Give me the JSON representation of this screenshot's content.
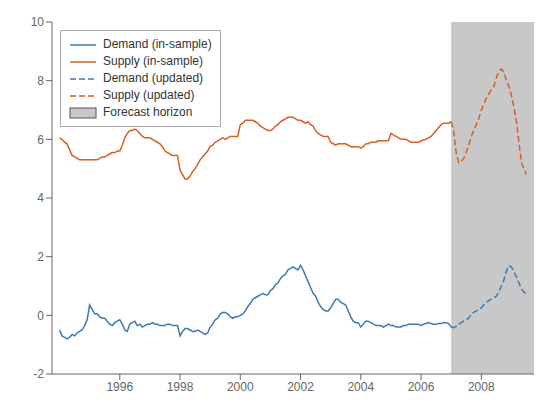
{
  "chart_data": {
    "type": "line",
    "xlim": [
      1993.75,
      2009.75
    ],
    "ylim": [
      -2,
      10
    ],
    "xticks": [
      1996,
      1998,
      2000,
      2002,
      2004,
      2006,
      2008
    ],
    "yticks": [
      -2,
      0,
      2,
      4,
      6,
      8,
      10
    ],
    "grid": false,
    "legend": "upper left",
    "spans": [
      {
        "label": "Forecast horizon",
        "start": 2007.0,
        "end": 2009.75,
        "color": "#c8c8c8"
      }
    ],
    "series": [
      {
        "name": "Demand (in-sample)",
        "color": "#3d7ab5",
        "line_style": "solid",
        "x": [
          1994.0,
          1994.083,
          1994.167,
          1994.25,
          1994.333,
          1994.417,
          1994.5,
          1994.583,
          1994.667,
          1994.75,
          1994.833,
          1994.917,
          1995.0,
          1995.083,
          1995.167,
          1995.25,
          1995.333,
          1995.417,
          1995.5,
          1995.583,
          1995.667,
          1995.75,
          1995.833,
          1995.917,
          1996.0,
          1996.083,
          1996.167,
          1996.25,
          1996.333,
          1996.417,
          1996.5,
          1996.583,
          1996.667,
          1996.75,
          1996.833,
          1996.917,
          1997.0,
          1997.083,
          1997.167,
          1997.25,
          1997.333,
          1997.417,
          1997.5,
          1997.583,
          1997.667,
          1997.75,
          1997.833,
          1997.917,
          1998.0,
          1998.083,
          1998.167,
          1998.25,
          1998.333,
          1998.417,
          1998.5,
          1998.583,
          1998.667,
          1998.75,
          1998.833,
          1998.917,
          1999.0,
          1999.083,
          1999.167,
          1999.25,
          1999.333,
          1999.417,
          1999.5,
          1999.583,
          1999.667,
          1999.75,
          1999.833,
          1999.917,
          2000.0,
          2000.083,
          2000.167,
          2000.25,
          2000.333,
          2000.417,
          2000.5,
          2000.583,
          2000.667,
          2000.75,
          2000.833,
          2000.917,
          2001.0,
          2001.083,
          2001.167,
          2001.25,
          2001.333,
          2001.417,
          2001.5,
          2001.583,
          2001.667,
          2001.75,
          2001.833,
          2001.917,
          2002.0,
          2002.083,
          2002.167,
          2002.25,
          2002.333,
          2002.417,
          2002.5,
          2002.583,
          2002.667,
          2002.75,
          2002.833,
          2002.917,
          2003.0,
          2003.083,
          2003.167,
          2003.25,
          2003.333,
          2003.417,
          2003.5,
          2003.583,
          2003.667,
          2003.75,
          2003.833,
          2003.917,
          2004.0,
          2004.083,
          2004.167,
          2004.25,
          2004.333,
          2004.417,
          2004.5,
          2004.583,
          2004.667,
          2004.75,
          2004.833,
          2004.917,
          2005.0,
          2005.083,
          2005.167,
          2005.25,
          2005.333,
          2005.417,
          2005.5,
          2005.583,
          2005.667,
          2005.75,
          2005.833,
          2005.917,
          2006.0,
          2006.083,
          2006.167,
          2006.25,
          2006.333,
          2006.417,
          2006.5,
          2006.583,
          2006.667,
          2006.75,
          2006.833,
          2006.917,
          2007.0
        ],
        "values": [
          -0.5,
          -0.7,
          -0.75,
          -0.8,
          -0.75,
          -0.65,
          -0.7,
          -0.6,
          -0.55,
          -0.5,
          -0.35,
          -0.15,
          0.35,
          0.2,
          0.05,
          0.05,
          -0.05,
          -0.1,
          -0.1,
          -0.2,
          -0.3,
          -0.35,
          -0.25,
          -0.2,
          -0.15,
          -0.3,
          -0.5,
          -0.55,
          -0.3,
          -0.25,
          -0.2,
          -0.35,
          -0.3,
          -0.4,
          -0.35,
          -0.3,
          -0.3,
          -0.25,
          -0.3,
          -0.3,
          -0.35,
          -0.35,
          -0.35,
          -0.3,
          -0.3,
          -0.35,
          -0.35,
          -0.35,
          -0.7,
          -0.55,
          -0.45,
          -0.45,
          -0.5,
          -0.55,
          -0.55,
          -0.5,
          -0.55,
          -0.6,
          -0.65,
          -0.6,
          -0.4,
          -0.3,
          -0.15,
          -0.1,
          0.05,
          0.1,
          0.1,
          0.05,
          -0.05,
          -0.1,
          -0.05,
          -0.05,
          0.0,
          0.05,
          0.15,
          0.3,
          0.4,
          0.55,
          0.6,
          0.65,
          0.7,
          0.75,
          0.7,
          0.7,
          0.85,
          0.9,
          1.05,
          1.1,
          1.25,
          1.35,
          1.4,
          1.55,
          1.6,
          1.65,
          1.6,
          1.55,
          1.7,
          1.55,
          1.35,
          1.15,
          0.95,
          0.75,
          0.65,
          0.45,
          0.3,
          0.2,
          0.15,
          0.15,
          0.25,
          0.4,
          0.55,
          0.55,
          0.45,
          0.4,
          0.35,
          0.15,
          -0.05,
          -0.2,
          -0.25,
          -0.25,
          -0.4,
          -0.3,
          -0.2,
          -0.2,
          -0.25,
          -0.3,
          -0.35,
          -0.35,
          -0.35,
          -0.4,
          -0.35,
          -0.3,
          -0.35,
          -0.35,
          -0.4,
          -0.4,
          -0.4,
          -0.35,
          -0.35,
          -0.3,
          -0.3,
          -0.3,
          -0.3,
          -0.3,
          -0.35,
          -0.3,
          -0.28,
          -0.25,
          -0.28,
          -0.3,
          -0.3,
          -0.28,
          -0.28,
          -0.25,
          -0.25,
          -0.28,
          -0.4
        ]
      },
      {
        "name": "Supply (in-sample)",
        "color": "#d95f20",
        "line_style": "solid",
        "x": [
          1994.0,
          1994.083,
          1994.167,
          1994.25,
          1994.333,
          1994.417,
          1994.5,
          1994.583,
          1994.667,
          1994.75,
          1994.833,
          1994.917,
          1995.0,
          1995.083,
          1995.167,
          1995.25,
          1995.333,
          1995.417,
          1995.5,
          1995.583,
          1995.667,
          1995.75,
          1995.833,
          1995.917,
          1996.0,
          1996.083,
          1996.167,
          1996.25,
          1996.333,
          1996.417,
          1996.5,
          1996.583,
          1996.667,
          1996.75,
          1996.833,
          1996.917,
          1997.0,
          1997.083,
          1997.167,
          1997.25,
          1997.333,
          1997.417,
          1997.5,
          1997.583,
          1997.667,
          1997.75,
          1997.833,
          1997.917,
          1998.0,
          1998.083,
          1998.167,
          1998.25,
          1998.333,
          1998.417,
          1998.5,
          1998.583,
          1998.667,
          1998.75,
          1998.833,
          1998.917,
          1999.0,
          1999.083,
          1999.167,
          1999.25,
          1999.333,
          1999.417,
          1999.5,
          1999.583,
          1999.667,
          1999.75,
          1999.833,
          1999.917,
          2000.0,
          2000.083,
          2000.167,
          2000.25,
          2000.333,
          2000.417,
          2000.5,
          2000.583,
          2000.667,
          2000.75,
          2000.833,
          2000.917,
          2001.0,
          2001.083,
          2001.167,
          2001.25,
          2001.333,
          2001.417,
          2001.5,
          2001.583,
          2001.667,
          2001.75,
          2001.833,
          2001.917,
          2002.0,
          2002.083,
          2002.167,
          2002.25,
          2002.333,
          2002.417,
          2002.5,
          2002.583,
          2002.667,
          2002.75,
          2002.833,
          2002.917,
          2003.0,
          2003.083,
          2003.167,
          2003.25,
          2003.333,
          2003.417,
          2003.5,
          2003.583,
          2003.667,
          2003.75,
          2003.833,
          2003.917,
          2004.0,
          2004.083,
          2004.167,
          2004.25,
          2004.333,
          2004.417,
          2004.5,
          2004.583,
          2004.667,
          2004.75,
          2004.833,
          2004.917,
          2005.0,
          2005.083,
          2005.167,
          2005.25,
          2005.333,
          2005.417,
          2005.5,
          2005.583,
          2005.667,
          2005.75,
          2005.833,
          2005.917,
          2006.0,
          2006.083,
          2006.167,
          2006.25,
          2006.333,
          2006.417,
          2006.5,
          2006.583,
          2006.667,
          2006.75,
          2006.833,
          2006.917,
          2007.0
        ],
        "values": [
          6.05,
          6.0,
          5.9,
          5.85,
          5.65,
          5.45,
          5.4,
          5.35,
          5.3,
          5.3,
          5.3,
          5.3,
          5.3,
          5.3,
          5.3,
          5.3,
          5.35,
          5.4,
          5.4,
          5.45,
          5.5,
          5.55,
          5.55,
          5.6,
          5.6,
          5.8,
          6.05,
          6.2,
          6.3,
          6.3,
          6.35,
          6.3,
          6.2,
          6.1,
          6.05,
          6.05,
          6.05,
          6.0,
          5.95,
          5.9,
          5.85,
          5.75,
          5.6,
          5.55,
          5.5,
          5.45,
          5.45,
          5.45,
          4.95,
          4.8,
          4.65,
          4.65,
          4.75,
          4.9,
          5.0,
          5.15,
          5.3,
          5.4,
          5.5,
          5.6,
          5.75,
          5.8,
          5.9,
          5.95,
          6.0,
          6.05,
          6.0,
          6.05,
          6.1,
          6.1,
          6.1,
          6.1,
          6.5,
          6.55,
          6.65,
          6.65,
          6.65,
          6.65,
          6.6,
          6.55,
          6.45,
          6.4,
          6.35,
          6.3,
          6.3,
          6.35,
          6.45,
          6.5,
          6.6,
          6.65,
          6.7,
          6.75,
          6.75,
          6.75,
          6.7,
          6.65,
          6.65,
          6.6,
          6.55,
          6.6,
          6.5,
          6.45,
          6.3,
          6.2,
          6.15,
          6.1,
          6.1,
          6.1,
          5.9,
          5.85,
          5.8,
          5.85,
          5.85,
          5.85,
          5.85,
          5.8,
          5.75,
          5.75,
          5.75,
          5.75,
          5.7,
          5.75,
          5.85,
          5.85,
          5.9,
          5.9,
          5.9,
          5.95,
          5.95,
          5.95,
          5.95,
          5.95,
          6.2,
          6.15,
          6.1,
          6.05,
          6.0,
          6.0,
          6.0,
          5.95,
          5.9,
          5.9,
          5.9,
          5.9,
          5.95,
          5.98,
          6.0,
          6.05,
          6.1,
          6.2,
          6.3,
          6.4,
          6.5,
          6.55,
          6.55,
          6.55,
          6.6
        ]
      },
      {
        "name": "Demand (updated)",
        "color": "#3d7ab5",
        "line_style": "dashed",
        "x": [
          2007.0,
          2007.083,
          2007.167,
          2007.25,
          2007.333,
          2007.417,
          2007.5,
          2007.583,
          2007.667,
          2007.75,
          2007.833,
          2007.917,
          2008.0,
          2008.083,
          2008.167,
          2008.25,
          2008.333,
          2008.417,
          2008.5,
          2008.583,
          2008.667,
          2008.75,
          2008.833,
          2008.917,
          2009.0,
          2009.083,
          2009.167,
          2009.25,
          2009.333,
          2009.5
        ],
        "values": [
          -0.4,
          -0.42,
          -0.38,
          -0.3,
          -0.25,
          -0.2,
          -0.15,
          -0.1,
          0.05,
          0.1,
          0.15,
          0.2,
          0.25,
          0.35,
          0.45,
          0.5,
          0.55,
          0.6,
          0.65,
          0.8,
          1.0,
          1.2,
          1.5,
          1.7,
          1.65,
          1.5,
          1.3,
          1.1,
          0.9,
          0.7
        ]
      },
      {
        "name": "Supply (updated)",
        "color": "#d95f20",
        "line_style": "dashed",
        "x": [
          2007.0,
          2007.083,
          2007.167,
          2007.25,
          2007.333,
          2007.417,
          2007.5,
          2007.583,
          2007.667,
          2007.75,
          2007.833,
          2007.917,
          2008.0,
          2008.083,
          2008.167,
          2008.25,
          2008.333,
          2008.417,
          2008.5,
          2008.583,
          2008.667,
          2008.75,
          2008.833,
          2008.917,
          2009.0,
          2009.083,
          2009.167,
          2009.25,
          2009.333,
          2009.5
        ],
        "values": [
          6.6,
          6.3,
          5.55,
          5.2,
          5.25,
          5.35,
          5.55,
          5.8,
          6.1,
          6.3,
          6.5,
          6.7,
          7.0,
          7.2,
          7.4,
          7.55,
          7.7,
          7.8,
          8.1,
          8.3,
          8.4,
          8.3,
          8.0,
          7.8,
          7.5,
          7.1,
          6.6,
          5.9,
          5.2,
          4.8
        ]
      }
    ]
  }
}
